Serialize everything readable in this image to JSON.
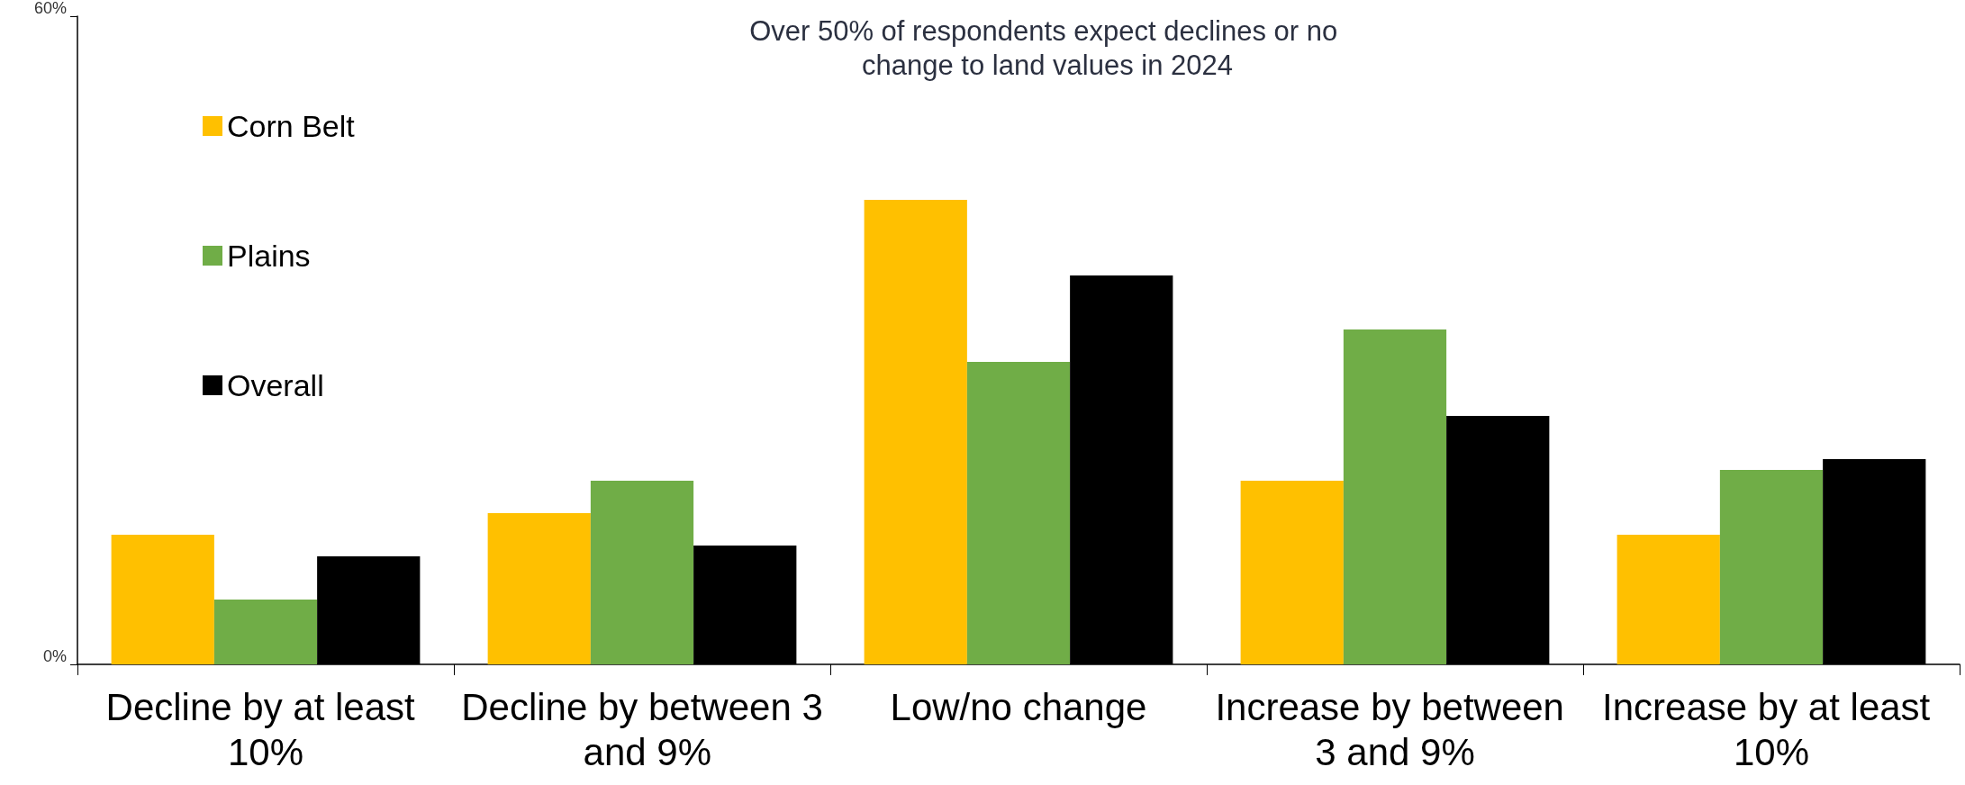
{
  "chart_data": {
    "type": "bar",
    "title": "Over 50% of respondents expect declines or no change to land values in 2024",
    "categories": [
      "Decline by at least 10%",
      "Decline by between 3 and 9%",
      "Low/no change",
      "Increase by between 3 and 9%",
      "Increase by at least 10%"
    ],
    "series": [
      {
        "name": "Corn Belt",
        "color": "#ffc000",
        "values": [
          12,
          14,
          43,
          17,
          12
        ]
      },
      {
        "name": "Plains",
        "color": "#70ad47",
        "values": [
          6,
          17,
          28,
          31,
          18
        ]
      },
      {
        "name": "Overall",
        "color": "#000000",
        "values": [
          10,
          11,
          36,
          23,
          19
        ]
      }
    ],
    "ylim": [
      0,
      60
    ],
    "yticks": [
      {
        "value": 0,
        "label": "0%"
      },
      {
        "value": 60,
        "label": "60%"
      }
    ],
    "grid": false,
    "legend": "top left"
  }
}
